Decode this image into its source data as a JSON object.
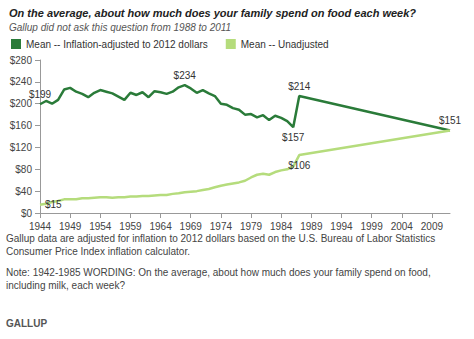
{
  "chart_data": {
    "type": "line",
    "title": "On the average, about how much does your family spend on food each week?",
    "subtitle": "Gallup did not ask this question from 1988 to 2011",
    "x": [
      1944,
      1945,
      1946,
      1947,
      1948,
      1949,
      1950,
      1951,
      1952,
      1953,
      1954,
      1955,
      1956,
      1957,
      1958,
      1959,
      1960,
      1961,
      1962,
      1963,
      1964,
      1965,
      1966,
      1967,
      1968,
      1969,
      1970,
      1971,
      1972,
      1973,
      1974,
      1975,
      1976,
      1977,
      1978,
      1979,
      1980,
      1981,
      1982,
      1983,
      1984,
      1985,
      1986,
      1987,
      2012
    ],
    "series": [
      {
        "name": "Mean -- Inflation-adjusted to 2012 dollars",
        "color": "#2a7b39",
        "values": [
          199,
          205,
          200,
          207,
          226,
          229,
          222,
          218,
          212,
          220,
          225,
          222,
          219,
          213,
          207,
          220,
          216,
          221,
          212,
          223,
          221,
          218,
          222,
          230,
          234,
          228,
          220,
          225,
          219,
          214,
          200,
          198,
          192,
          189,
          180,
          181,
          175,
          179,
          170,
          178,
          174,
          168,
          157,
          214,
          151
        ]
      },
      {
        "name": "Mean -- Unadjusted",
        "color": "#b5dc7c",
        "values": [
          15,
          17,
          20,
          22,
          25,
          25,
          25,
          27,
          27,
          28,
          29,
          29,
          28,
          29,
          29,
          30,
          30,
          31,
          31,
          32,
          33,
          33,
          35,
          36,
          38,
          39,
          40,
          42,
          44,
          47,
          50,
          52,
          54,
          56,
          59,
          65,
          70,
          72,
          70,
          75,
          78,
          80,
          85,
          106,
          151
        ]
      }
    ],
    "annotations": [
      {
        "text": "$199",
        "x": 1944,
        "y": 199
      },
      {
        "text": "$15",
        "x": 1944,
        "y": 15
      },
      {
        "text": "$234",
        "x": 1968,
        "y": 234
      },
      {
        "text": "$214",
        "x": 1987,
        "y": 214
      },
      {
        "text": "$157",
        "x": 1986,
        "y": 157
      },
      {
        "text": "$106",
        "x": 1987,
        "y": 106
      },
      {
        "text": "$151",
        "x": 2012,
        "y": 151
      }
    ],
    "notes": [
      "Gallup data are adjusted for inflation to 2012 dollars based on the U.S. Bureau of Labor Statistics Consumer Price Index inflation calculator.",
      "Note: 1942-1985 WORDING: On the average, about how much does your family spend on food, including milk, each week?"
    ],
    "source": "GALLUP",
    "xlim": [
      1944,
      2012
    ],
    "xticks": [
      1944,
      1949,
      1954,
      1959,
      1964,
      1969,
      1974,
      1979,
      1984,
      1989,
      1994,
      1999,
      2004,
      2009
    ],
    "ylim": [
      0,
      280
    ],
    "yticks": [
      {
        "value": 0,
        "label": "$0"
      },
      {
        "value": 40,
        "label": "$40"
      },
      {
        "value": 80,
        "label": "$80"
      },
      {
        "value": 120,
        "label": "$120"
      },
      {
        "value": 160,
        "label": "$160"
      },
      {
        "value": 200,
        "label": "$200"
      },
      {
        "value": 240,
        "label": "$240"
      },
      {
        "value": 280,
        "label": "$280"
      }
    ],
    "grid": false,
    "legend": "top-left"
  }
}
